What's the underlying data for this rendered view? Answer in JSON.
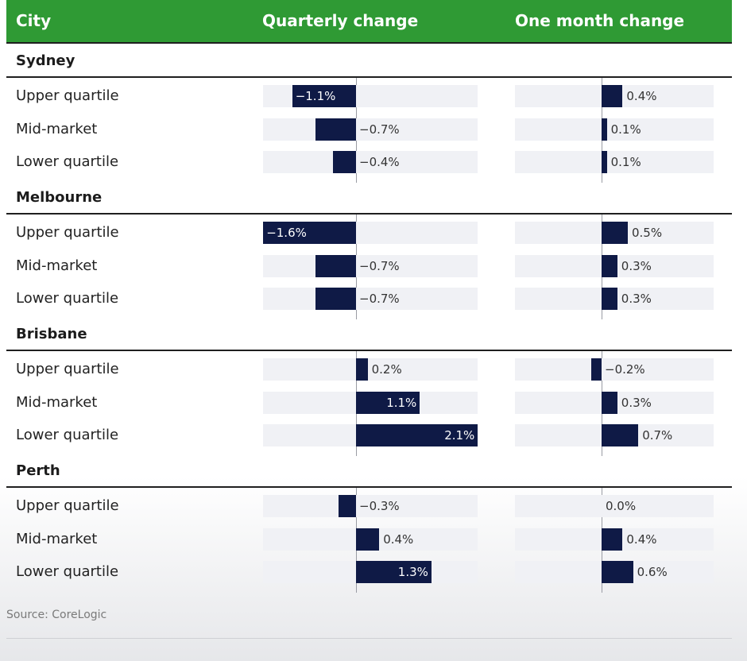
{
  "header": {
    "city": "City",
    "quarterly": "Quarterly change",
    "monthly": "One month change"
  },
  "source": "Source: CoreLogic",
  "colors": {
    "header": "#2f9a34",
    "bar": "#0f1a46",
    "track": "#f0f1f5"
  },
  "chart_data": {
    "type": "bar",
    "orientation": "horizontal",
    "categories": [
      "Upper quartile",
      "Mid-market",
      "Lower quartile"
    ],
    "groups": [
      {
        "name": "Sydney",
        "quarterly_labels": [
          "−1.1%",
          "−0.7%",
          "−0.4%"
        ],
        "quarterly": [
          -1.1,
          -0.7,
          -0.4
        ],
        "monthly_labels": [
          "0.4%",
          "0.1%",
          "0.1%"
        ],
        "monthly": [
          0.4,
          0.1,
          0.1
        ]
      },
      {
        "name": "Melbourne",
        "quarterly_labels": [
          "−1.6%",
          "−0.7%",
          "−0.7%"
        ],
        "quarterly": [
          -1.6,
          -0.7,
          -0.7
        ],
        "monthly_labels": [
          "0.5%",
          "0.3%",
          "0.3%"
        ],
        "monthly": [
          0.5,
          0.3,
          0.3
        ]
      },
      {
        "name": "Brisbane",
        "quarterly_labels": [
          "0.2%",
          "1.1%",
          "2.1%"
        ],
        "quarterly": [
          0.2,
          1.1,
          2.1
        ],
        "monthly_labels": [
          "−0.2%",
          "0.3%",
          "0.7%"
        ],
        "monthly": [
          -0.2,
          0.3,
          0.7
        ]
      },
      {
        "name": "Perth",
        "quarterly_labels": [
          "−0.3%",
          "0.4%",
          "1.3%"
        ],
        "quarterly": [
          -0.3,
          0.4,
          1.3
        ],
        "monthly_labels": [
          "0.0%",
          "0.4%",
          "0.6%"
        ],
        "monthly": [
          0.0,
          0.4,
          0.6
        ]
      }
    ],
    "quarterly_xlim": [
      -1.6,
      2.1
    ],
    "monthly_xlim": [
      -0.4,
      1.2
    ]
  }
}
